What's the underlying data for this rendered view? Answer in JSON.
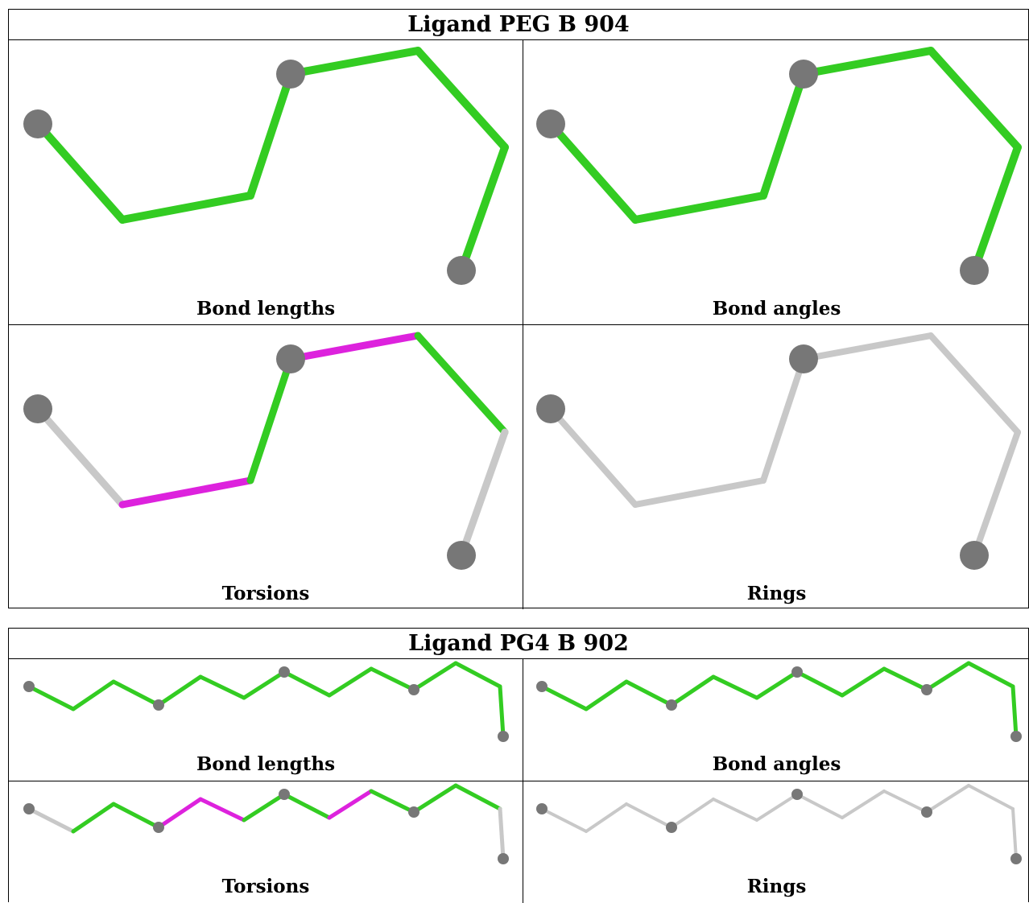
{
  "ligands": [
    {
      "title": "Ligand PEG B 904",
      "panels": [
        {
          "caption": "Bond lengths"
        },
        {
          "caption": "Bond angles"
        },
        {
          "caption": "Torsions"
        },
        {
          "caption": "Rings"
        }
      ]
    },
    {
      "title": "Ligand PG4 B 902",
      "panels": [
        {
          "caption": "Bond lengths"
        },
        {
          "caption": "Bond angles"
        },
        {
          "caption": "Torsions"
        },
        {
          "caption": "Rings"
        }
      ]
    }
  ],
  "colors": {
    "green_bond": "#33cc22",
    "magenta_bond": "#dd22dd",
    "grey_bond": "#c8c8c8",
    "atom": "#777777"
  }
}
